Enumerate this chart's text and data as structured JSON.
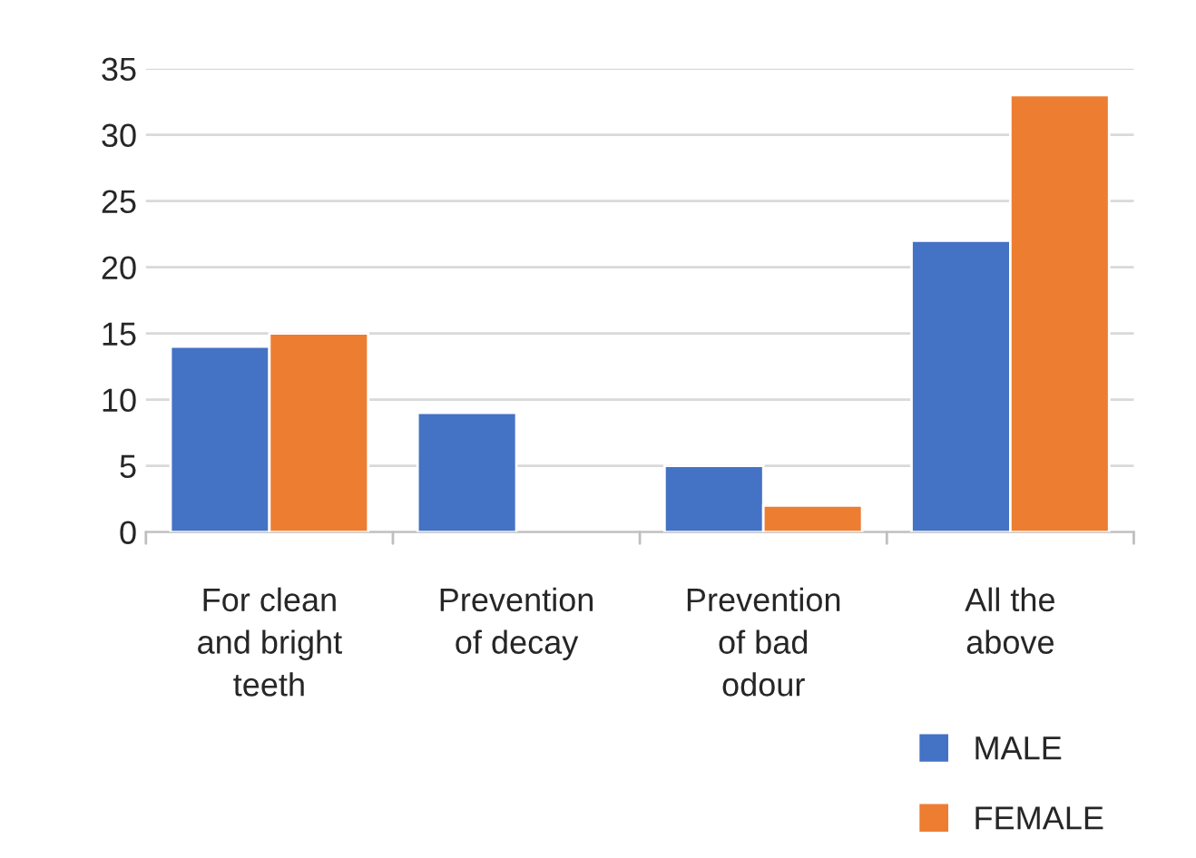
{
  "chart_data": {
    "type": "bar",
    "categories": [
      "For clean\nand bright\nteeth",
      "Prevention\nof decay",
      "Prevention\nof bad\nodour",
      "All the\nabove"
    ],
    "series": [
      {
        "name": "MALE",
        "color": "#4472c4",
        "values": [
          14,
          9,
          5,
          22
        ]
      },
      {
        "name": "FEMALE",
        "color": "#ed7d31",
        "values": [
          15,
          null,
          2,
          33
        ]
      }
    ],
    "ylim": [
      0,
      35
    ],
    "yticks": [
      0,
      5,
      10,
      15,
      20,
      25,
      30,
      35
    ],
    "grid": "y",
    "legend": "bottom right"
  }
}
